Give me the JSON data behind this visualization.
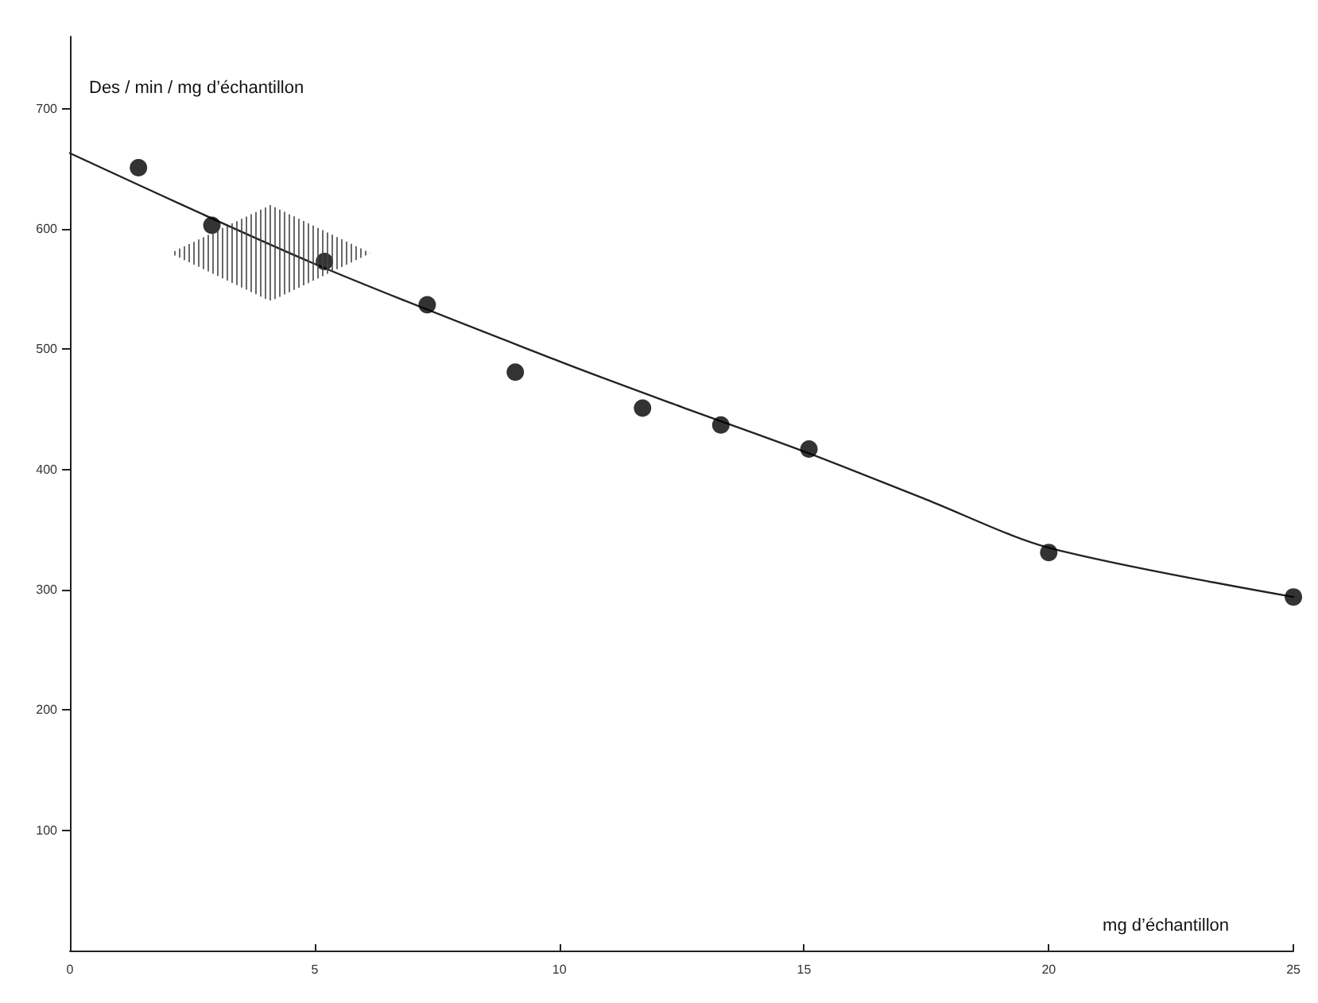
{
  "chart_data": {
    "type": "scatter",
    "xlabel": "mg d’échantillon",
    "ylabel": "Des / min / mg d’échantillon",
    "xlim": [
      0,
      25
    ],
    "ylim": [
      0,
      760
    ],
    "xticks": [
      0,
      5,
      10,
      15,
      20,
      25
    ],
    "yticks": [
      100,
      200,
      300,
      400,
      500,
      600,
      700
    ],
    "grid": false,
    "marker": "circle",
    "series": [
      {
        "color": "#000000",
        "x": [
          1.4,
          2.9,
          5.2,
          7.3,
          9.1,
          11.7,
          13.3,
          15.1,
          20,
          25
        ],
        "values": [
          651,
          603,
          573,
          537,
          481,
          451,
          437,
          417,
          331,
          294
        ]
      },
      {
        "type": "line",
        "color": "#222222",
        "line_style": "solid",
        "marker": "none",
        "x": [
          0,
          5,
          10,
          12.5,
          15,
          17.5,
          20,
          25
        ],
        "values": [
          663,
          571,
          490,
          452,
          415,
          375,
          335,
          294
        ]
      }
    ]
  }
}
